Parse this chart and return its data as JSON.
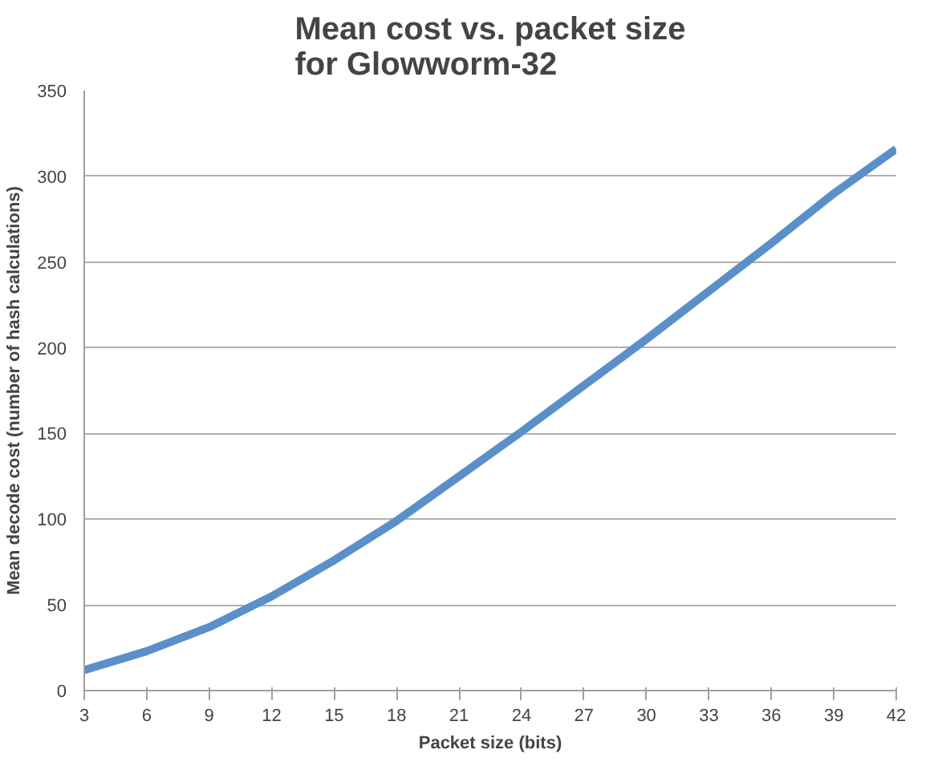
{
  "chart_data": {
    "type": "line",
    "title": "Mean cost vs. packet size\nfor Glowworm-32",
    "xlabel": "Packet size (bits)",
    "ylabel": "Mean decode cost (number of hash calculations)",
    "x": [
      3,
      6,
      9,
      12,
      15,
      18,
      21,
      24,
      27,
      30,
      33,
      36,
      39,
      42
    ],
    "series": [
      {
        "color": "#5b8fc9",
        "values": [
          12,
          23,
          37,
          55,
          76,
          99,
          125,
          151,
          178,
          205,
          233,
          261,
          290,
          316
        ]
      }
    ],
    "xlim": [
      3,
      42
    ],
    "xticks": [
      3,
      6,
      9,
      12,
      15,
      18,
      21,
      24,
      27,
      30,
      33,
      36,
      39,
      42
    ],
    "ylim": [
      0,
      350
    ],
    "yticks": [
      0,
      50,
      100,
      150,
      200,
      250,
      300,
      350
    ],
    "grid": "y",
    "marker": "none",
    "line_style": "solid"
  }
}
